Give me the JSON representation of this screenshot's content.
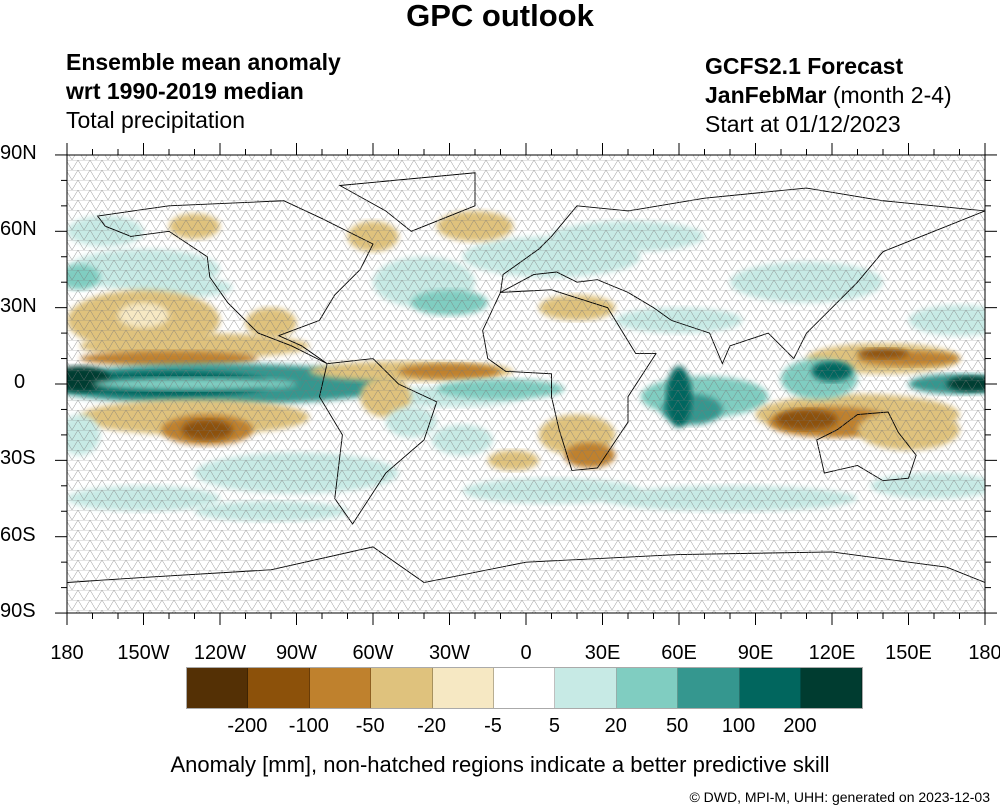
{
  "title": "GPC outlook",
  "header_left": {
    "line1": "Ensemble mean anomaly",
    "line2": "wrt 1990-2019 median",
    "line3": "Total precipitation"
  },
  "header_right": {
    "line1": "GCFS2.1 Forecast",
    "season": "JanFebMar",
    "season_note": " (month 2-4)",
    "line3": "Start at 01/12/2023"
  },
  "lat_labels": [
    "90N",
    "60N",
    "30N",
    "0",
    "30S",
    "60S",
    "90S"
  ],
  "lon_labels": [
    "180",
    "150W",
    "120W",
    "90W",
    "60W",
    "30W",
    "0",
    "30E",
    "60E",
    "90E",
    "120E",
    "150E",
    "180"
  ],
  "colorbar": {
    "colors": [
      "#543005",
      "#8c510a",
      "#bf812d",
      "#dfc27d",
      "#f6e8c3",
      "#ffffff",
      "#c7eae5",
      "#80cdc1",
      "#35978f",
      "#01665e",
      "#003c30"
    ],
    "labels": [
      "-200",
      "-100",
      "-50",
      "-20",
      "-5",
      "5",
      "20",
      "50",
      "100",
      "200"
    ]
  },
  "caption": "Anomaly [mm], non-hatched regions indicate a better predictive skill",
  "footer": "©  DWD, MPI-M, UHH: generated on 2023-12-03"
}
